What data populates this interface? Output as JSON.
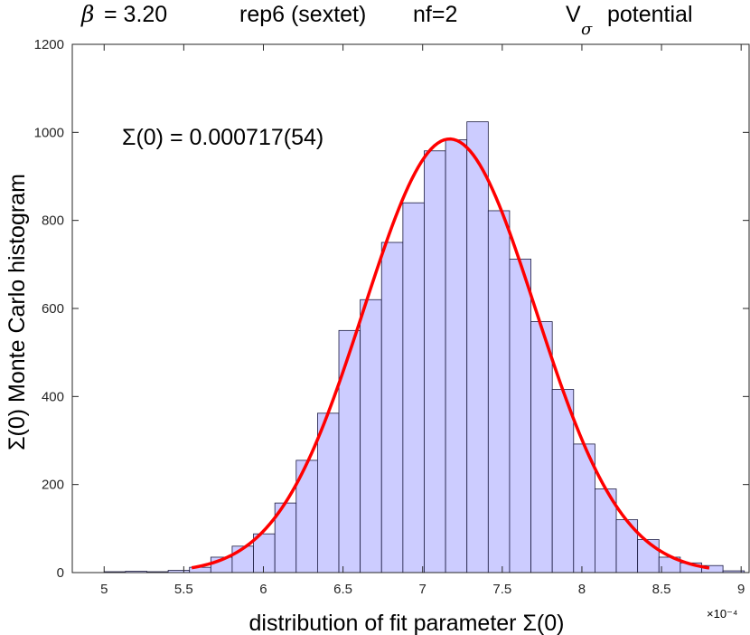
{
  "chart_data": {
    "type": "bar",
    "title": {
      "beta_symbol": "β",
      "beta_value": "= 3.20",
      "rep": "rep6 (sextet)",
      "nf": "nf=2",
      "potential_letter": "V",
      "potential_sub": "σ",
      "potential_word": "potential"
    },
    "annotation": "Σ(0) = 0.000717(54)",
    "xlabel": "distribution of fit parameter  Σ(0)",
    "ylabel": "Σ(0)   Monte Carlo histogram",
    "x_exponent": "×10⁻⁴",
    "xlim": [
      4.8,
      9.05
    ],
    "ylim": [
      0,
      1200
    ],
    "xticks": [
      "5",
      "5.5",
      "6",
      "6.5",
      "7",
      "7.5",
      "8",
      "8.5",
      "9"
    ],
    "yticks": [
      "0",
      "200",
      "400",
      "600",
      "800",
      "1000",
      "1200"
    ],
    "bin_start": 5.0,
    "bin_width": 0.134,
    "counts": [
      2,
      3,
      2,
      5,
      12,
      35,
      60,
      88,
      158,
      255,
      362,
      550,
      620,
      750,
      840,
      958,
      983,
      1024,
      822,
      712,
      570,
      416,
      292,
      190,
      120,
      75,
      35,
      22,
      16,
      4
    ],
    "fit": {
      "mu": 7.17,
      "sigma": 0.54,
      "amplitude": 985,
      "x_from": 5.55,
      "x_to": 8.8
    },
    "colors": {
      "bar_fill": "#ccccff",
      "bar_edge": "#1a1a40",
      "fit_line": "#ff0000",
      "axis": "#262626"
    },
    "grid": false
  }
}
